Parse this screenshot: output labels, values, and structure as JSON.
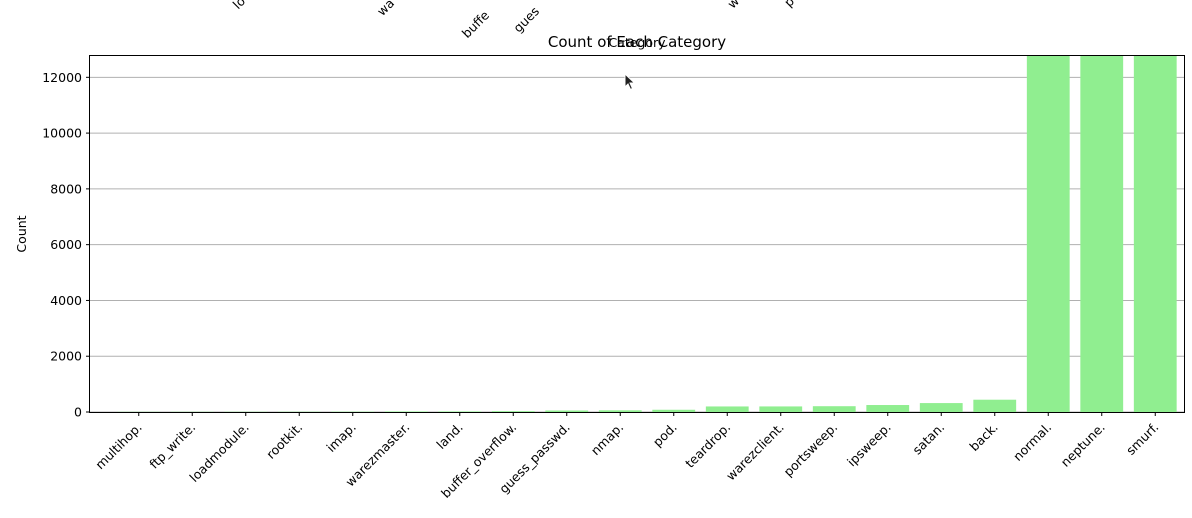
{
  "ghost_top_labels": [
    "lo",
    "wa",
    "buffe",
    "gues",
    "w",
    "p"
  ],
  "ghost_title": "Category",
  "chart_data": {
    "type": "bar",
    "title": "Count of Each Category",
    "xlabel": "",
    "ylabel": "Count",
    "ylim": [
      0,
      12800
    ],
    "yticks": [
      0,
      2000,
      4000,
      6000,
      8000,
      10000,
      12000
    ],
    "grid": true,
    "bar_color": "#90ee90",
    "categories": [
      "multihop.",
      "ftp_write.",
      "loadmodule.",
      "rootkit.",
      "imap.",
      "warezmaster.",
      "land.",
      "buffer_overflow.",
      "guess_passwd.",
      "nmap.",
      "pod.",
      "teardrop.",
      "warezclient.",
      "portsweep.",
      "ipsweep.",
      "satan.",
      "back.",
      "normal.",
      "neptune.",
      "smurf."
    ],
    "values": [
      7,
      8,
      9,
      10,
      12,
      20,
      21,
      30,
      53,
      60,
      80,
      199,
      200,
      208,
      250,
      320,
      441,
      12800,
      12800,
      12800
    ]
  }
}
